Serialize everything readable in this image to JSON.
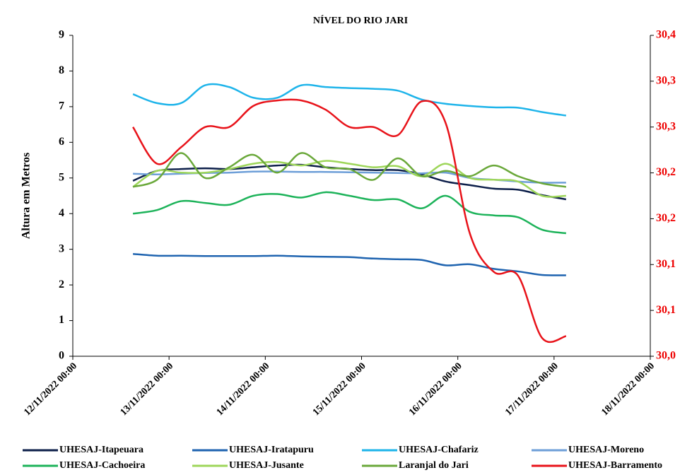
{
  "chart_data": {
    "type": "line",
    "title": "NÍVEL DO RIO JARI",
    "y_label": "Altura  em Metros",
    "x": [
      "2022-11-12T15:00",
      "2022-11-12T21:00",
      "2022-11-13T03:00",
      "2022-11-13T09:00",
      "2022-11-13T15:00",
      "2022-11-13T21:00",
      "2022-11-14T03:00",
      "2022-11-14T09:00",
      "2022-11-14T15:00",
      "2022-11-14T21:00",
      "2022-11-15T03:00",
      "2022-11-15T09:00",
      "2022-11-15T15:00",
      "2022-11-15T21:00",
      "2022-11-16T03:00",
      "2022-11-16T09:00",
      "2022-11-16T15:00",
      "2022-11-16T21:00",
      "2022-11-17T03:00"
    ],
    "xlim": [
      "2022-11-12T00:00",
      "2022-11-18T00:00"
    ],
    "xticks": [
      {
        "value": "2022-11-12T00:00",
        "label": "12/11/2022 00:00"
      },
      {
        "value": "2022-11-13T00:00",
        "label": "13/11/2022 00:00"
      },
      {
        "value": "2022-11-14T00:00",
        "label": "14/11/2022 00:00"
      },
      {
        "value": "2022-11-15T00:00",
        "label": "15/11/2022 00:00"
      },
      {
        "value": "2022-11-16T00:00",
        "label": "16/11/2022 00:00"
      },
      {
        "value": "2022-11-17T00:00",
        "label": "17/11/2022 00:00"
      },
      {
        "value": "2022-11-18T00:00",
        "label": "18/11/2022 00:00"
      }
    ],
    "ylim": [
      0,
      9
    ],
    "yticks": [
      0,
      1,
      2,
      3,
      4,
      5,
      6,
      7,
      8,
      9
    ],
    "y2lim": [
      30,
      30.35
    ],
    "y2ticks": [
      {
        "value": 30,
        "label": "30,0"
      },
      {
        "value": 30.05,
        "label": "30,1"
      },
      {
        "value": 30.1,
        "label": "30,1"
      },
      {
        "value": 30.15,
        "label": "30,2"
      },
      {
        "value": 30.2,
        "label": "30,2"
      },
      {
        "value": 30.25,
        "label": "30,3"
      },
      {
        "value": 30.3,
        "label": "30,3"
      },
      {
        "value": 30.35,
        "label": "30,4"
      }
    ],
    "series": [
      {
        "name": "UHESAJ-Itapeuara",
        "color": "#0d1f4a",
        "values": [
          4.92,
          5.2,
          5.25,
          5.27,
          5.25,
          5.3,
          5.35,
          5.37,
          5.3,
          5.25,
          5.22,
          5.22,
          5.1,
          4.9,
          4.8,
          4.7,
          4.67,
          4.52,
          4.4
        ]
      },
      {
        "name": "UHESAJ-Iratapuru",
        "color": "#1f64b0",
        "values": [
          2.87,
          2.82,
          2.82,
          2.81,
          2.81,
          2.81,
          2.82,
          2.8,
          2.79,
          2.78,
          2.74,
          2.72,
          2.7,
          2.55,
          2.58,
          2.45,
          2.38,
          2.28,
          2.27
        ]
      },
      {
        "name": "UHESAJ-Chafariz",
        "color": "#1eb4ea",
        "values": [
          7.35,
          7.1,
          7.1,
          7.6,
          7.55,
          7.25,
          7.25,
          7.6,
          7.55,
          7.52,
          7.5,
          7.45,
          7.2,
          7.08,
          7.02,
          6.98,
          6.97,
          6.85,
          6.75
        ]
      },
      {
        "name": "UHESAJ-Moreno",
        "color": "#6e9fd8",
        "values": [
          5.12,
          5.1,
          5.12,
          5.14,
          5.15,
          5.18,
          5.18,
          5.17,
          5.17,
          5.16,
          5.15,
          5.14,
          5.13,
          5.15,
          5.0,
          4.95,
          4.9,
          4.87,
          4.87
        ]
      },
      {
        "name": "UHESAJ-Cachoeira",
        "color": "#1db35a",
        "values": [
          4.0,
          4.1,
          4.35,
          4.3,
          4.25,
          4.5,
          4.55,
          4.45,
          4.6,
          4.5,
          4.38,
          4.4,
          4.15,
          4.5,
          4.05,
          3.95,
          3.9,
          3.55,
          3.45
        ]
      },
      {
        "name": "UHESAJ-Jusante",
        "color": "#9ed65a",
        "values": [
          4.75,
          5.2,
          5.15,
          5.15,
          5.25,
          5.4,
          5.45,
          5.35,
          5.48,
          5.4,
          5.3,
          5.33,
          5.05,
          5.4,
          5.0,
          4.95,
          4.9,
          4.5,
          4.5
        ]
      },
      {
        "name": "Laranjal do Jari",
        "color": "#6aa83a",
        "values": [
          4.75,
          4.95,
          5.7,
          5.0,
          5.3,
          5.65,
          5.15,
          5.7,
          5.3,
          5.25,
          4.95,
          5.55,
          5.05,
          5.2,
          5.05,
          5.35,
          5.05,
          4.85,
          4.75
        ]
      },
      {
        "name": "UHESAJ-Barramento",
        "color": "#e8131a",
        "axis": "y2",
        "values": [
          30.25,
          30.21,
          30.228,
          30.25,
          30.25,
          30.273,
          30.279,
          30.279,
          30.269,
          30.25,
          30.25,
          30.241,
          30.278,
          30.254,
          30.134,
          30.092,
          30.088,
          30.02,
          30.022
        ]
      }
    ]
  }
}
